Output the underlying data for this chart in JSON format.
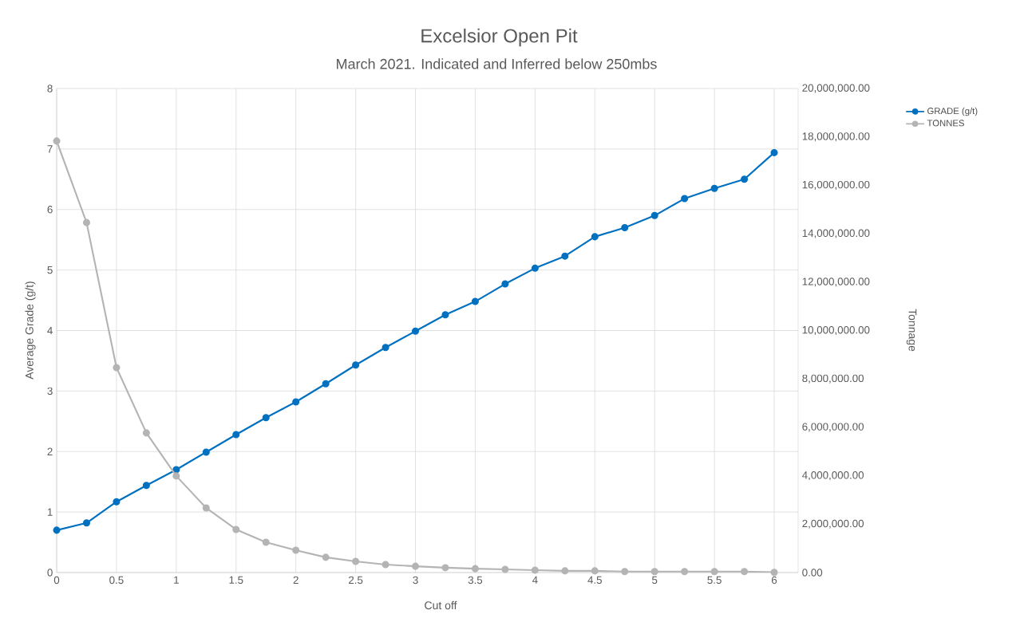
{
  "chart_data": {
    "type": "line",
    "title": "Excelsior Open Pit",
    "subtitle": "March 2021. Indicated and Inferred below 250mbs",
    "xlabel": "Cut off",
    "ylabel": "Average Grade (g/t)",
    "y2label": "Tonnage",
    "x": [
      0,
      0.25,
      0.5,
      0.75,
      1,
      1.25,
      1.5,
      1.75,
      2,
      2.25,
      2.5,
      2.75,
      3,
      3.25,
      3.5,
      3.75,
      4,
      4.25,
      4.5,
      4.75,
      5,
      5.25,
      5.5,
      5.75,
      6
    ],
    "series": [
      {
        "name": "GRADE (g/t)",
        "color": "#0070c0",
        "values": [
          0.7,
          0.82,
          1.17,
          1.44,
          1.7,
          1.99,
          2.28,
          2.56,
          2.82,
          3.12,
          3.43,
          3.72,
          3.99,
          4.26,
          4.48,
          4.77,
          5.03,
          5.23,
          5.55,
          5.7,
          5.9,
          6.18,
          6.35,
          6.5,
          6.94
        ]
      },
      {
        "name": "TONNES",
        "color": "#b4b4b4",
        "axis": "y2",
        "values": [
          17830000,
          14460000,
          8470000,
          5770000,
          3990000,
          2670000,
          1780000,
          1250000,
          920000,
          630000,
          460000,
          330000,
          260000,
          200000,
          160000,
          130000,
          100000,
          70000,
          70000,
          40000,
          40000,
          40000,
          40000,
          40000,
          10000
        ]
      }
    ],
    "xlim": [
      0,
      6.2
    ],
    "xticks": [
      0,
      0.5,
      1,
      1.5,
      2,
      2.5,
      3,
      3.5,
      4,
      4.5,
      5,
      5.5,
      6
    ],
    "ylim": [
      0,
      8
    ],
    "yticks": [
      0,
      1,
      2,
      3,
      4,
      5,
      6,
      7,
      8
    ],
    "y2lim": [
      0,
      20000000
    ],
    "y2ticks": [
      {
        "value": 0,
        "label": "0.00"
      },
      {
        "value": 2000000,
        "label": "2,000,000.00"
      },
      {
        "value": 4000000,
        "label": "4,000,000.00"
      },
      {
        "value": 6000000,
        "label": "6,000,000.00"
      },
      {
        "value": 8000000,
        "label": "8,000,000.00"
      },
      {
        "value": 10000000,
        "label": "10,000,000.00"
      },
      {
        "value": 12000000,
        "label": "12,000,000.00"
      },
      {
        "value": 14000000,
        "label": "14,000,000.00"
      },
      {
        "value": 16000000,
        "label": "16,000,000.00"
      },
      {
        "value": 18000000,
        "label": "18,000,000.00"
      },
      {
        "value": 20000000,
        "label": "20,000,000.00"
      }
    ],
    "grid": true,
    "legend": "top right",
    "marker": "circle",
    "line_style": "solid"
  }
}
